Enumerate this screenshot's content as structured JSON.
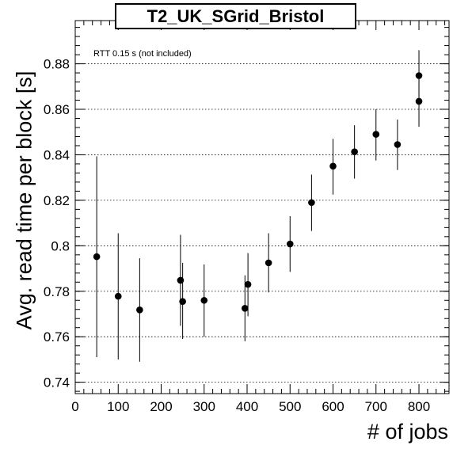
{
  "chart_data": {
    "type": "scatter",
    "title": "T2_UK_SGrid_Bristol",
    "xlabel": "# of jobs",
    "ylabel": "Avg. read time per block [s]",
    "annotation": "RTT 0.15 s (not included)",
    "xlim": [
      0,
      870
    ],
    "ylim": [
      0.735,
      0.899
    ],
    "x_ticks": [
      0,
      100,
      200,
      300,
      400,
      500,
      600,
      700,
      800
    ],
    "y_ticks": [
      0.74,
      0.76,
      0.78,
      0.8,
      0.82,
      0.84,
      0.86,
      0.88
    ],
    "y_tick_labels": [
      "0.74",
      "0.76",
      "0.78",
      "0.8",
      "0.82",
      "0.84",
      "0.86",
      "0.88"
    ],
    "grid": "horizontal dotted at major y ticks",
    "series": [
      {
        "marker": "filled circle",
        "color": "#000000",
        "points": [
          {
            "x": 50,
            "y": 0.7952,
            "ylow": 0.751,
            "yhigh": 0.8393
          },
          {
            "x": 100,
            "y": 0.7778,
            "ylow": 0.75,
            "yhigh": 0.8055
          },
          {
            "x": 150,
            "y": 0.7718,
            "ylow": 0.749,
            "yhigh": 0.7945
          },
          {
            "x": 245,
            "y": 0.7848,
            "ylow": 0.7648,
            "yhigh": 0.8048
          },
          {
            "x": 250,
            "y": 0.7755,
            "ylow": 0.759,
            "yhigh": 0.7925
          },
          {
            "x": 300,
            "y": 0.776,
            "ylow": 0.76,
            "yhigh": 0.7918
          },
          {
            "x": 395,
            "y": 0.7725,
            "ylow": 0.758,
            "yhigh": 0.787
          },
          {
            "x": 402,
            "y": 0.783,
            "ylow": 0.769,
            "yhigh": 0.7968
          },
          {
            "x": 450,
            "y": 0.7925,
            "ylow": 0.7795,
            "yhigh": 0.8055
          },
          {
            "x": 500,
            "y": 0.8008,
            "ylow": 0.7885,
            "yhigh": 0.813
          },
          {
            "x": 550,
            "y": 0.819,
            "ylow": 0.8065,
            "yhigh": 0.8313
          },
          {
            "x": 600,
            "y": 0.835,
            "ylow": 0.8225,
            "yhigh": 0.847
          },
          {
            "x": 650,
            "y": 0.8413,
            "ylow": 0.8295,
            "yhigh": 0.853
          },
          {
            "x": 700,
            "y": 0.849,
            "ylow": 0.8375,
            "yhigh": 0.86
          },
          {
            "x": 750,
            "y": 0.8445,
            "ylow": 0.8333,
            "yhigh": 0.8555
          },
          {
            "x": 800,
            "y": 0.8748,
            "ylow": 0.8635,
            "yhigh": 0.886
          },
          {
            "x": 800,
            "y": 0.8635,
            "ylow": 0.8523,
            "yhigh": 0.8748
          }
        ]
      }
    ]
  }
}
